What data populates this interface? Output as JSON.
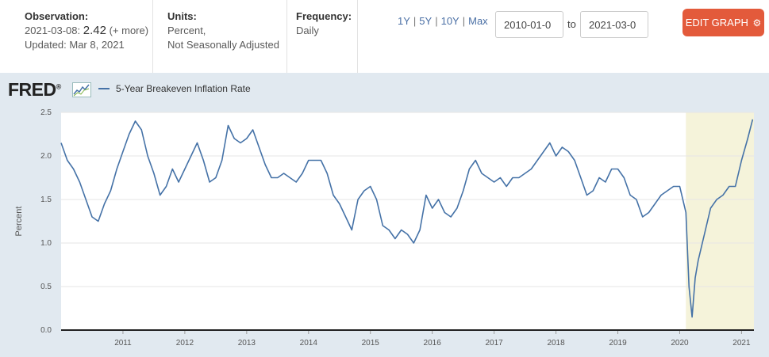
{
  "observation": {
    "label": "Observation:",
    "date": "2021-03-08:",
    "value": "2.42",
    "more": "(+ more)",
    "updated": "Updated: Mar 8, 2021"
  },
  "units": {
    "label": "Units:",
    "line1": "Percent,",
    "line2": "Not Seasonally Adjusted"
  },
  "frequency": {
    "label": "Frequency:",
    "value": "Daily"
  },
  "ranges": [
    "1Y",
    "5Y",
    "10Y",
    "Max"
  ],
  "date_range": {
    "start": "2010-01-0",
    "to_label": "to",
    "end": "2021-03-0"
  },
  "edit_button": {
    "label": "EDIT GRAPH",
    "icon": "gear-icon"
  },
  "brand": {
    "logo_text": "FRED",
    "mark": "®"
  },
  "colors": {
    "series": "#4572a7",
    "recession": "#f5f3da",
    "button": "#e35a3b",
    "background": "#e1e9f0"
  },
  "chart_data": {
    "type": "line",
    "title": "",
    "legend": [
      "5-Year Breakeven Inflation Rate"
    ],
    "ylabel": "Percent",
    "xlabel": "",
    "ylim": [
      0,
      2.5
    ],
    "xlim": [
      2010.0,
      2021.2
    ],
    "yticks": [
      "0.0",
      "0.5",
      "1.0",
      "1.5",
      "2.0",
      "2.5"
    ],
    "xticks": [
      "2011",
      "2012",
      "2013",
      "2014",
      "2015",
      "2016",
      "2017",
      "2018",
      "2019",
      "2020",
      "2021"
    ],
    "shaded_region": {
      "label": "recession",
      "from": 2020.1,
      "to": 2021.2
    },
    "series": [
      {
        "name": "5-Year Breakeven Inflation Rate",
        "x": [
          2010.0,
          2010.1,
          2010.2,
          2010.3,
          2010.4,
          2010.5,
          2010.6,
          2010.7,
          2010.8,
          2010.9,
          2011.0,
          2011.1,
          2011.2,
          2011.3,
          2011.4,
          2011.5,
          2011.6,
          2011.7,
          2011.8,
          2011.9,
          2012.0,
          2012.1,
          2012.2,
          2012.3,
          2012.4,
          2012.5,
          2012.6,
          2012.7,
          2012.8,
          2012.9,
          2013.0,
          2013.1,
          2013.2,
          2013.3,
          2013.4,
          2013.5,
          2013.6,
          2013.7,
          2013.8,
          2013.9,
          2014.0,
          2014.1,
          2014.2,
          2014.3,
          2014.4,
          2014.5,
          2014.6,
          2014.7,
          2014.8,
          2014.9,
          2015.0,
          2015.1,
          2015.2,
          2015.3,
          2015.4,
          2015.5,
          2015.6,
          2015.7,
          2015.8,
          2015.9,
          2016.0,
          2016.1,
          2016.2,
          2016.3,
          2016.4,
          2016.5,
          2016.6,
          2016.7,
          2016.8,
          2016.9,
          2017.0,
          2017.1,
          2017.2,
          2017.3,
          2017.4,
          2017.5,
          2017.6,
          2017.7,
          2017.8,
          2017.9,
          2018.0,
          2018.1,
          2018.2,
          2018.3,
          2018.4,
          2018.5,
          2018.6,
          2018.7,
          2018.8,
          2018.9,
          2019.0,
          2019.1,
          2019.2,
          2019.3,
          2019.4,
          2019.5,
          2019.6,
          2019.7,
          2019.8,
          2019.9,
          2020.0,
          2020.1,
          2020.15,
          2020.2,
          2020.25,
          2020.3,
          2020.4,
          2020.5,
          2020.6,
          2020.7,
          2020.8,
          2020.9,
          2021.0,
          2021.1,
          2021.18
        ],
        "values": [
          2.15,
          1.95,
          1.85,
          1.7,
          1.5,
          1.3,
          1.25,
          1.45,
          1.6,
          1.85,
          2.05,
          2.25,
          2.4,
          2.3,
          2.0,
          1.8,
          1.55,
          1.65,
          1.85,
          1.7,
          1.85,
          2.0,
          2.15,
          1.95,
          1.7,
          1.75,
          1.95,
          2.35,
          2.2,
          2.15,
          2.2,
          2.3,
          2.1,
          1.9,
          1.75,
          1.75,
          1.8,
          1.75,
          1.7,
          1.8,
          1.95,
          1.95,
          1.95,
          1.8,
          1.55,
          1.45,
          1.3,
          1.15,
          1.5,
          1.6,
          1.65,
          1.5,
          1.2,
          1.15,
          1.05,
          1.15,
          1.1,
          1.0,
          1.15,
          1.55,
          1.4,
          1.5,
          1.35,
          1.3,
          1.4,
          1.6,
          1.85,
          1.95,
          1.8,
          1.75,
          1.7,
          1.75,
          1.65,
          1.75,
          1.75,
          1.8,
          1.85,
          1.95,
          2.05,
          2.15,
          2.0,
          2.1,
          2.05,
          1.95,
          1.75,
          1.55,
          1.6,
          1.75,
          1.7,
          1.85,
          1.85,
          1.75,
          1.55,
          1.5,
          1.3,
          1.35,
          1.45,
          1.55,
          1.6,
          1.65,
          1.65,
          1.35,
          0.5,
          0.15,
          0.6,
          0.8,
          1.1,
          1.4,
          1.5,
          1.55,
          1.65,
          1.65,
          1.95,
          2.2,
          2.42
        ]
      }
    ]
  }
}
